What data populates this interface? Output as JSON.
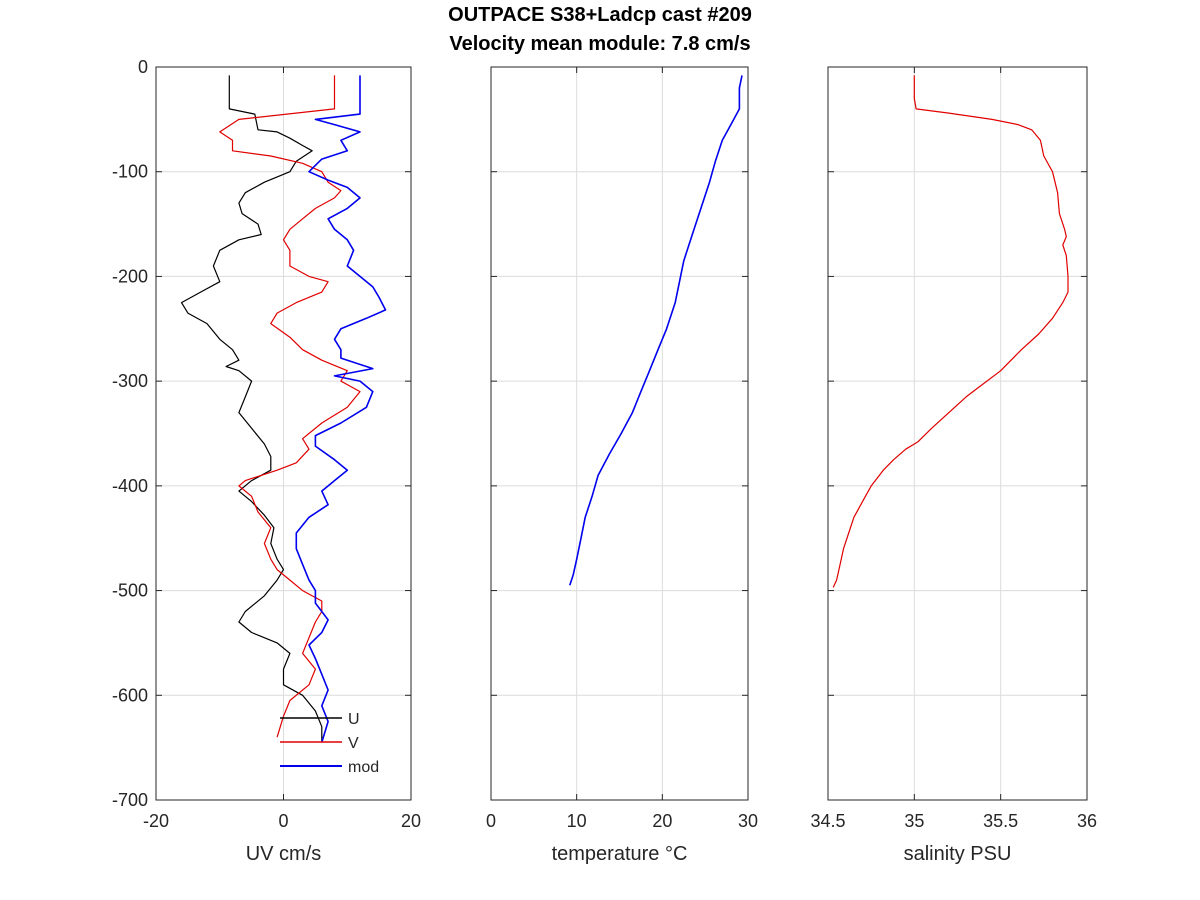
{
  "title": {
    "line1": "OUTPACE S38+Ladcp cast #209",
    "line2": "Velocity mean module:  7.8 cm/s"
  },
  "colors": {
    "U": "#000000",
    "V": "#e00000",
    "mod": "#0000ee",
    "temperature": "#0000ee",
    "salinity": "#e00000",
    "grid": "#dcdcdc",
    "axis": "#262626"
  },
  "chart_data": [
    {
      "type": "line",
      "xlabel": "UV cm/s",
      "ylabel": "",
      "xlim": [
        -20,
        20
      ],
      "ylim": [
        -700,
        0
      ],
      "xticks": [
        "-20",
        "0",
        "20"
      ],
      "yticks": [
        "0",
        "-100",
        "-200",
        "-300",
        "-400",
        "-500",
        "-600",
        "-700"
      ],
      "grid": true,
      "legend_position": "bottom-right",
      "series": [
        {
          "name": "U",
          "color": "#000000",
          "points": [
            [
              -8.5,
              -8
            ],
            [
              -8.5,
              -40
            ],
            [
              -4.5,
              -45
            ],
            [
              -4,
              -60
            ],
            [
              -1,
              -62
            ],
            [
              1,
              -68
            ],
            [
              3,
              -75
            ],
            [
              4.5,
              -80
            ],
            [
              2,
              -90
            ],
            [
              1,
              -100
            ],
            [
              -3,
              -110
            ],
            [
              -6,
              -120
            ],
            [
              -7,
              -130
            ],
            [
              -6.5,
              -140
            ],
            [
              -4,
              -150
            ],
            [
              -3.5,
              -160
            ],
            [
              -7,
              -165
            ],
            [
              -10,
              -175
            ],
            [
              -11,
              -190
            ],
            [
              -10,
              -205
            ],
            [
              -13,
              -215
            ],
            [
              -16,
              -225
            ],
            [
              -15,
              -235
            ],
            [
              -12,
              -245
            ],
            [
              -10,
              -260
            ],
            [
              -8,
              -270
            ],
            [
              -7,
              -280
            ],
            [
              -9,
              -286
            ],
            [
              -7,
              -290
            ],
            [
              -5,
              -300
            ],
            [
              -6,
              -315
            ],
            [
              -7,
              -330
            ],
            [
              -5,
              -345
            ],
            [
              -3,
              -360
            ],
            [
              -2,
              -372
            ],
            [
              -2,
              -385
            ],
            [
              -5,
              -395
            ],
            [
              -7,
              -405
            ],
            [
              -5,
              -415
            ],
            [
              -3,
              -428
            ],
            [
              -1.5,
              -440
            ],
            [
              -2,
              -455
            ],
            [
              -1,
              -470
            ],
            [
              0,
              -480
            ],
            [
              -1,
              -490
            ],
            [
              -3,
              -505
            ],
            [
              -6,
              -520
            ],
            [
              -7,
              -530
            ],
            [
              -5,
              -540
            ],
            [
              -1,
              -550
            ],
            [
              1,
              -560
            ],
            [
              0,
              -575
            ],
            [
              0,
              -590
            ],
            [
              3,
              -600
            ],
            [
              5,
              -615
            ],
            [
              6,
              -630
            ],
            [
              6,
              -645
            ]
          ]
        },
        {
          "name": "V",
          "color": "#e00000",
          "points": [
            [
              8,
              -8
            ],
            [
              8,
              -40
            ],
            [
              -7,
              -50
            ],
            [
              -10,
              -62
            ],
            [
              -8,
              -70
            ],
            [
              -8,
              -80
            ],
            [
              -2,
              -85
            ],
            [
              3,
              -92
            ],
            [
              6,
              -100
            ],
            [
              7,
              -110
            ],
            [
              9,
              -118
            ],
            [
              8,
              -125
            ],
            [
              5,
              -135
            ],
            [
              3,
              -145
            ],
            [
              1,
              -155
            ],
            [
              0,
              -165
            ],
            [
              1,
              -175
            ],
            [
              1,
              -190
            ],
            [
              4,
              -200
            ],
            [
              7,
              -205
            ],
            [
              6,
              -215
            ],
            [
              2,
              -225
            ],
            [
              -1,
              -235
            ],
            [
              -2,
              -245
            ],
            [
              1,
              -258
            ],
            [
              3,
              -270
            ],
            [
              6,
              -280
            ],
            [
              10,
              -290
            ],
            [
              9,
              -300
            ],
            [
              12,
              -310
            ],
            [
              10,
              -325
            ],
            [
              6,
              -340
            ],
            [
              3,
              -355
            ],
            [
              4,
              -365
            ],
            [
              2,
              -378
            ],
            [
              -1,
              -385
            ],
            [
              -6,
              -395
            ],
            [
              -7,
              -400
            ],
            [
              -5,
              -410
            ],
            [
              -4,
              -425
            ],
            [
              -2,
              -440
            ],
            [
              -3,
              -455
            ],
            [
              -2,
              -470
            ],
            [
              -1,
              -480
            ],
            [
              1,
              -490
            ],
            [
              3,
              -500
            ],
            [
              6,
              -510
            ],
            [
              6,
              -520
            ],
            [
              5,
              -530
            ],
            [
              4,
              -545
            ],
            [
              3,
              -560
            ],
            [
              5,
              -575
            ],
            [
              4,
              -590
            ],
            [
              1,
              -605
            ],
            [
              0,
              -620
            ],
            [
              -1,
              -640
            ]
          ]
        },
        {
          "name": "mod",
          "color": "#0000ee",
          "points": [
            [
              12,
              -8
            ],
            [
              12,
              -45
            ],
            [
              5,
              -50
            ],
            [
              8,
              -55
            ],
            [
              12,
              -62
            ],
            [
              9,
              -70
            ],
            [
              10,
              -80
            ],
            [
              6,
              -88
            ],
            [
              4,
              -100
            ],
            [
              7,
              -108
            ],
            [
              10,
              -115
            ],
            [
              12,
              -125
            ],
            [
              10,
              -135
            ],
            [
              7,
              -145
            ],
            [
              8,
              -155
            ],
            [
              10,
              -165
            ],
            [
              11,
              -175
            ],
            [
              10,
              -190
            ],
            [
              12,
              -200
            ],
            [
              14,
              -210
            ],
            [
              15,
              -220
            ],
            [
              16,
              -232
            ],
            [
              13,
              -240
            ],
            [
              9,
              -250
            ],
            [
              8,
              -260
            ],
            [
              9,
              -270
            ],
            [
              9,
              -278
            ],
            [
              14,
              -288
            ],
            [
              8,
              -295
            ],
            [
              12,
              -300
            ],
            [
              14,
              -310
            ],
            [
              13,
              -325
            ],
            [
              9,
              -340
            ],
            [
              5,
              -352
            ],
            [
              5,
              -362
            ],
            [
              8,
              -375
            ],
            [
              10,
              -385
            ],
            [
              8,
              -395
            ],
            [
              6,
              -405
            ],
            [
              7,
              -418
            ],
            [
              4,
              -430
            ],
            [
              2,
              -445
            ],
            [
              2,
              -460
            ],
            [
              3,
              -475
            ],
            [
              4,
              -490
            ],
            [
              5,
              -500
            ],
            [
              5,
              -512
            ],
            [
              6,
              -520
            ],
            [
              7,
              -528
            ],
            [
              6,
              -540
            ],
            [
              4,
              -552
            ],
            [
              5,
              -565
            ],
            [
              6,
              -580
            ],
            [
              7,
              -595
            ],
            [
              6,
              -610
            ],
            [
              7,
              -625
            ],
            [
              6,
              -645
            ]
          ]
        }
      ]
    },
    {
      "type": "line",
      "xlabel": "temperature °C",
      "ylabel": "",
      "xlim": [
        0,
        30
      ],
      "ylim": [
        -700,
        0
      ],
      "xticks": [
        "0",
        "10",
        "20",
        "30"
      ],
      "grid": true,
      "series": [
        {
          "color": "#0000ee",
          "points": [
            [
              29.3,
              -8
            ],
            [
              29,
              -20
            ],
            [
              29,
              -40
            ],
            [
              28,
              -55
            ],
            [
              27,
              -70
            ],
            [
              26.2,
              -90
            ],
            [
              25.5,
              -110
            ],
            [
              24.5,
              -135
            ],
            [
              23.5,
              -160
            ],
            [
              22.5,
              -185
            ],
            [
              22,
              -205
            ],
            [
              21.5,
              -225
            ],
            [
              20.5,
              -250
            ],
            [
              19.5,
              -270
            ],
            [
              18.5,
              -290
            ],
            [
              17.5,
              -310
            ],
            [
              16.5,
              -330
            ],
            [
              15.2,
              -350
            ],
            [
              13.8,
              -370
            ],
            [
              12.5,
              -390
            ],
            [
              11.8,
              -410
            ],
            [
              11,
              -430
            ],
            [
              10.5,
              -450
            ],
            [
              10,
              -470
            ],
            [
              9.6,
              -485
            ],
            [
              9.2,
              -495
            ]
          ]
        }
      ]
    },
    {
      "type": "line",
      "xlabel": "salinity PSU",
      "ylabel": "",
      "xlim": [
        34.5,
        36
      ],
      "ylim": [
        -700,
        0
      ],
      "xticks": [
        "34.5",
        "35",
        "35.5",
        "36"
      ],
      "grid": true,
      "series": [
        {
          "color": "#e00000",
          "points": [
            [
              35,
              -8
            ],
            [
              35,
              -30
            ],
            [
              35.01,
              -40
            ],
            [
              35.2,
              -44
            ],
            [
              35.45,
              -50
            ],
            [
              35.6,
              -55
            ],
            [
              35.68,
              -60
            ],
            [
              35.73,
              -70
            ],
            [
              35.75,
              -85
            ],
            [
              35.8,
              -100
            ],
            [
              35.83,
              -120
            ],
            [
              35.84,
              -140
            ],
            [
              35.87,
              -155
            ],
            [
              35.88,
              -162
            ],
            [
              35.86,
              -170
            ],
            [
              35.88,
              -180
            ],
            [
              35.89,
              -200
            ],
            [
              35.89,
              -215
            ],
            [
              35.86,
              -225
            ],
            [
              35.8,
              -240
            ],
            [
              35.72,
              -255
            ],
            [
              35.62,
              -270
            ],
            [
              35.5,
              -290
            ],
            [
              35.38,
              -305
            ],
            [
              35.3,
              -315
            ],
            [
              35.2,
              -330
            ],
            [
              35.1,
              -345
            ],
            [
              35.02,
              -358
            ],
            [
              34.95,
              -365
            ],
            [
              34.88,
              -375
            ],
            [
              34.82,
              -385
            ],
            [
              34.75,
              -400
            ],
            [
              34.7,
              -415
            ],
            [
              34.65,
              -430
            ],
            [
              34.62,
              -445
            ],
            [
              34.59,
              -460
            ],
            [
              34.57,
              -475
            ],
            [
              34.55,
              -490
            ],
            [
              34.53,
              -497
            ]
          ]
        }
      ]
    }
  ]
}
